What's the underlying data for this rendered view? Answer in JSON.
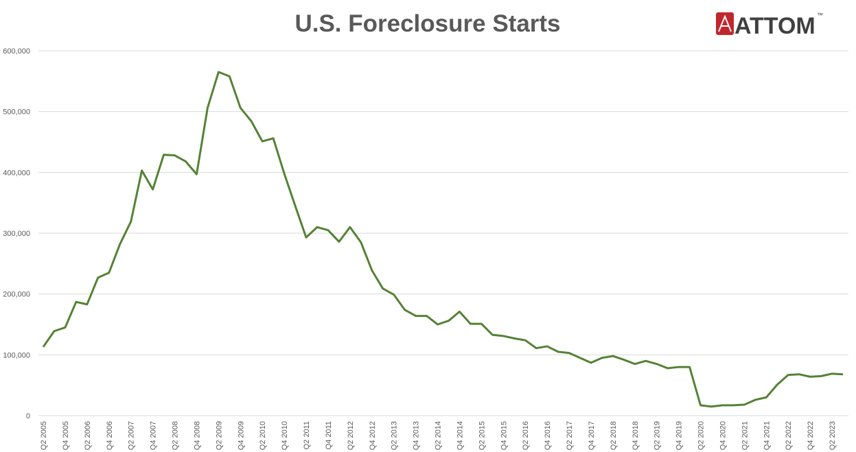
{
  "logo": {
    "text": "ATTOM",
    "mark": "™"
  },
  "chart_data": {
    "type": "line",
    "title": "U.S. Foreclosure Starts",
    "categories": [
      "Q2 2005",
      null,
      "Q4 2005",
      null,
      "Q2 2006",
      null,
      "Q4 2006",
      null,
      "Q2 2007",
      null,
      "Q4 2007",
      null,
      "Q2 2008",
      null,
      "Q4 2008",
      null,
      "Q2 2009",
      null,
      "Q4 2009",
      null,
      "Q2 2010",
      null,
      "Q4 2010",
      null,
      "Q2 2011",
      null,
      "Q4 2011",
      null,
      "Q2 2012",
      null,
      "Q4 2012",
      null,
      "Q2 2013",
      null,
      "Q4 2013",
      null,
      "Q2 2014",
      null,
      "Q4 2014",
      null,
      "Q2 2015",
      null,
      "Q4 2015",
      null,
      "Q2 2016",
      null,
      "Q4 2016",
      null,
      "Q2 2017",
      null,
      "Q4 2017",
      null,
      "Q2 2018",
      null,
      "Q4 2018",
      null,
      "Q2 2019",
      null,
      "Q4 2019",
      null,
      "Q2 2020",
      null,
      "Q4 2020",
      null,
      "Q2 2021",
      null,
      "Q4 2021",
      null,
      "Q2 2022",
      null,
      "Q4 2022",
      null,
      "Q2 2023",
      null
    ],
    "values": [
      113000,
      139000,
      145000,
      187000,
      183000,
      227000,
      235000,
      282000,
      319000,
      403000,
      372000,
      429000,
      428000,
      418000,
      397000,
      506000,
      565000,
      558000,
      506000,
      484000,
      451000,
      456000,
      398000,
      345000,
      293000,
      310000,
      305000,
      286000,
      310000,
      285000,
      239000,
      209000,
      199000,
      174000,
      164000,
      164000,
      150000,
      156000,
      171000,
      151000,
      151000,
      133000,
      131000,
      127000,
      124000,
      111000,
      114000,
      105000,
      103000,
      95000,
      87000,
      95000,
      98000,
      92000,
      85000,
      90000,
      85000,
      78000,
      80000,
      80000,
      17000,
      15000,
      17000,
      17000,
      18000,
      26000,
      30000,
      51000,
      67000,
      68000,
      64000,
      65000,
      69000,
      68000
    ],
    "color": "#548235",
    "ylim": [
      0,
      600000
    ],
    "yticks": [
      0,
      {
        "value": 100000,
        "label": "100,000"
      },
      {
        "value": 200000,
        "label": "200,000"
      },
      {
        "value": 300000,
        "label": "300,000"
      },
      {
        "value": 400000,
        "label": "400,000"
      },
      {
        "value": 500000,
        "label": "500,000"
      },
      {
        "value": 600000,
        "label": "600,000"
      }
    ],
    "grid": true
  }
}
